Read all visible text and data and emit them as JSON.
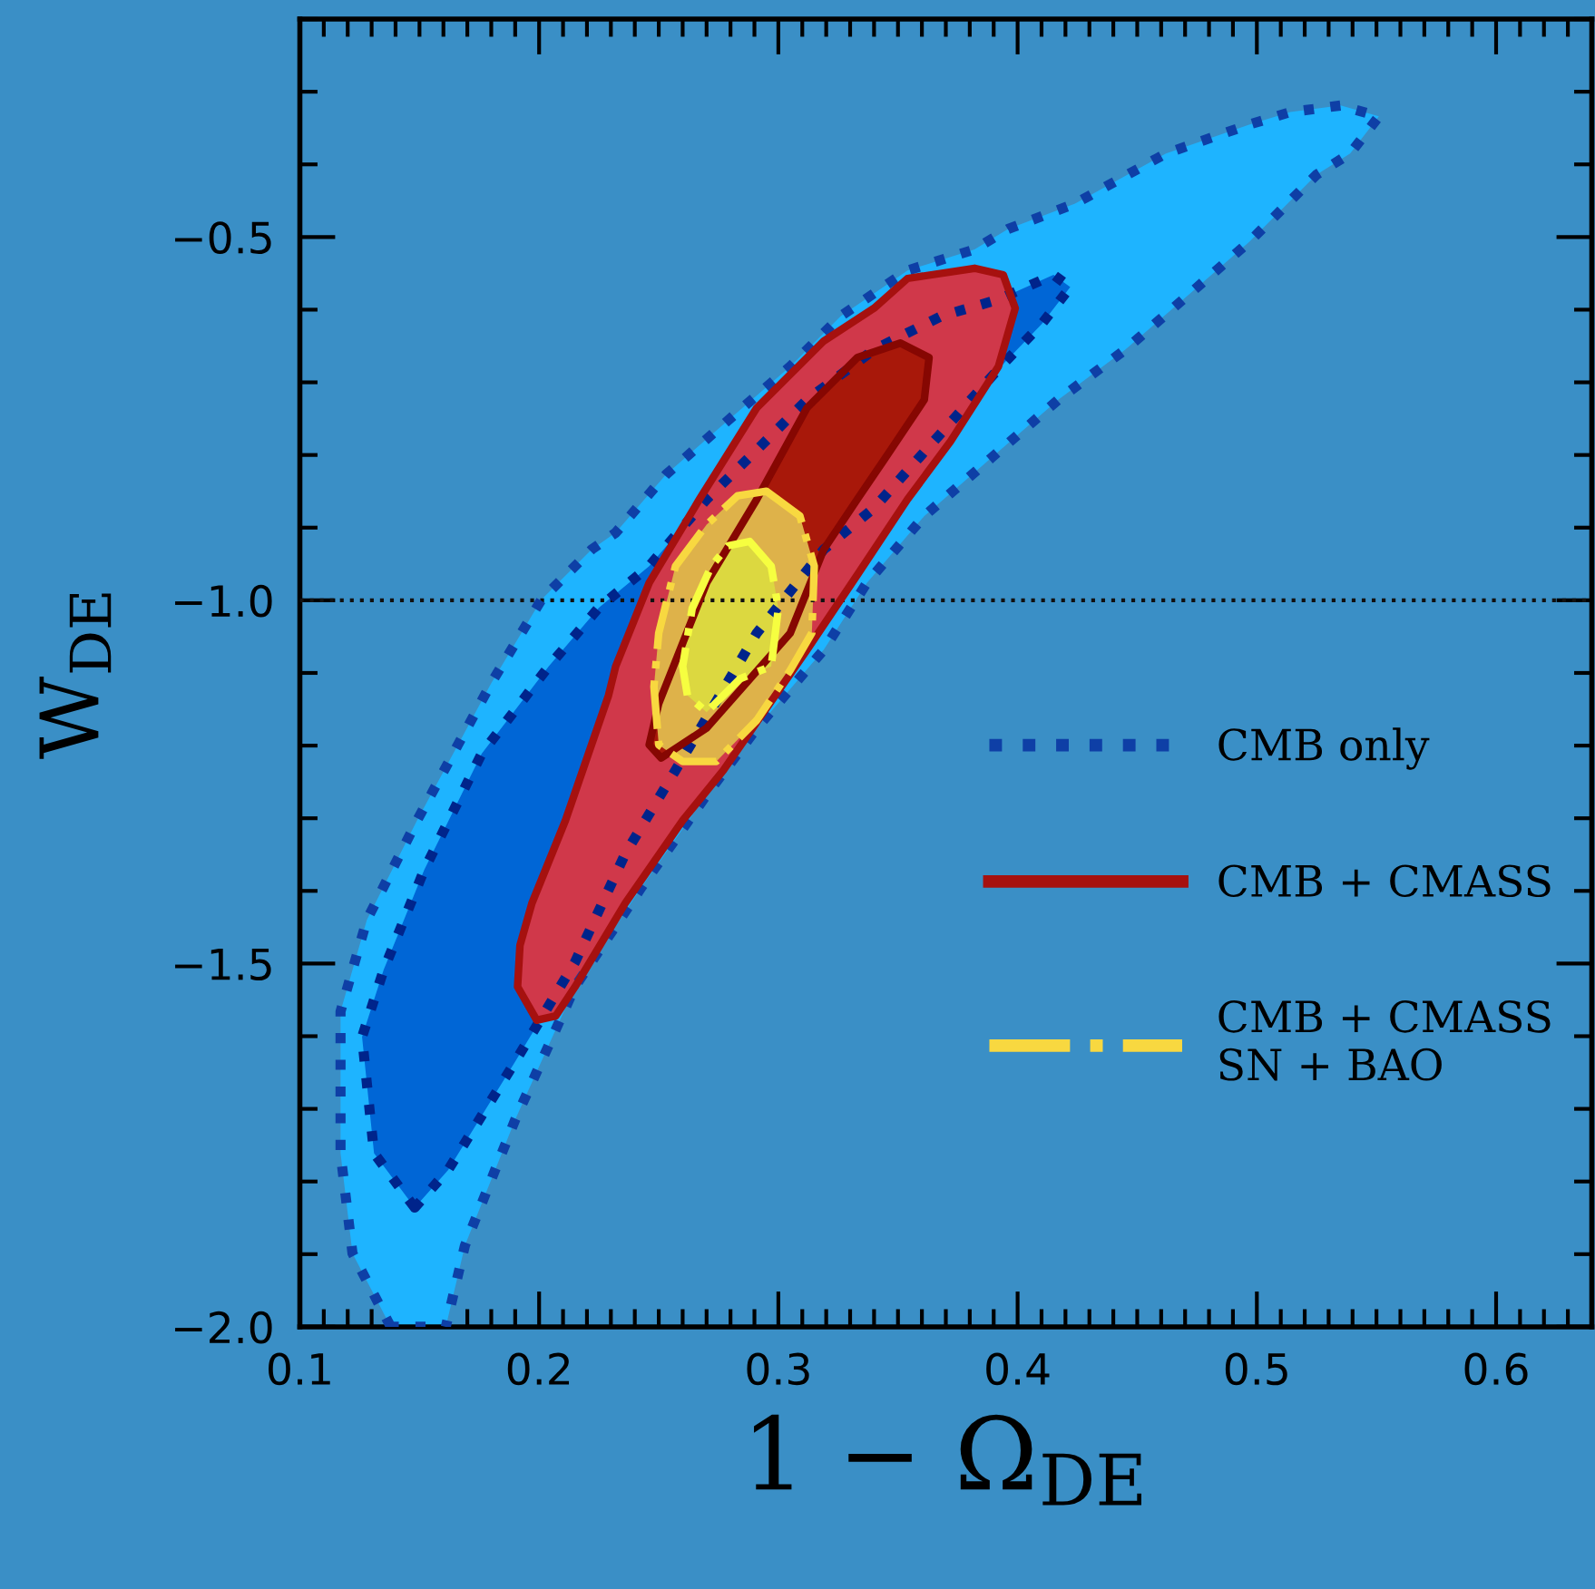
{
  "chart_data": {
    "type": "area",
    "xlabel": "1 − Ω$_{DE}$",
    "ylabel": "W$_{DE}$",
    "xlim": [
      0.1,
      0.64
    ],
    "ylim": [
      -2.0,
      -0.2
    ],
    "xticks": [
      0.1,
      0.2,
      0.3,
      0.4,
      0.5,
      0.6
    ],
    "yticks": [
      {
        "value": -2.0,
        "label": "−2.0"
      },
      {
        "value": -1.5,
        "label": "−1.5"
      },
      {
        "value": -1.0,
        "label": "−1.0"
      },
      {
        "value": -0.5,
        "label": "−0.5"
      }
    ],
    "grid": false,
    "legend": "right",
    "ref_lines": [
      {
        "axis": "y",
        "value": -1.0,
        "color": "#111111",
        "line_style": "dotted"
      }
    ],
    "series": [
      {
        "name": "CMB only",
        "color": "#1eb4ff",
        "line_style": "dotted",
        "x": [
          0.138,
          0.122,
          0.117,
          0.117,
          0.128,
          0.149,
          0.18,
          0.201,
          0.222,
          0.232,
          0.253,
          0.277,
          0.305,
          0.326,
          0.354,
          0.382,
          0.396,
          0.424,
          0.462,
          0.497,
          0.514,
          0.535,
          0.551,
          0.539,
          0.525,
          0.497,
          0.473,
          0.445,
          0.417,
          0.389,
          0.361,
          0.337,
          0.319,
          0.291,
          0.27,
          0.243,
          0.215,
          0.19,
          0.169,
          0.161
        ],
        "values": [
          -2.0,
          -1.899,
          -1.761,
          -1.566,
          -1.44,
          -1.303,
          -1.114,
          -0.999,
          -0.93,
          -0.907,
          -0.827,
          -0.758,
          -0.678,
          -0.609,
          -0.546,
          -0.517,
          -0.489,
          -0.454,
          -0.385,
          -0.345,
          -0.328,
          -0.319,
          -0.334,
          -0.385,
          -0.414,
          -0.506,
          -0.575,
          -0.655,
          -0.724,
          -0.804,
          -0.884,
          -0.976,
          -1.068,
          -1.176,
          -1.268,
          -1.394,
          -1.532,
          -1.715,
          -1.888,
          -2.0
        ]
      },
      {
        "color": "#0066d6",
        "line_style": "dotted",
        "x": [
          0.148,
          0.131,
          0.126,
          0.135,
          0.152,
          0.176,
          0.204,
          0.225,
          0.246,
          0.27,
          0.291,
          0.312,
          0.34,
          0.368,
          0.392,
          0.415,
          0.422,
          0.41,
          0.393,
          0.365,
          0.34,
          0.319,
          0.291,
          0.257,
          0.236,
          0.215,
          0.19,
          0.162
        ],
        "values": [
          -1.836,
          -1.761,
          -1.601,
          -1.509,
          -1.371,
          -1.211,
          -1.091,
          -1.01,
          -0.953,
          -0.861,
          -0.793,
          -0.724,
          -0.655,
          -0.609,
          -0.586,
          -0.552,
          -0.569,
          -0.62,
          -0.678,
          -0.781,
          -0.873,
          -0.93,
          -1.045,
          -1.234,
          -1.349,
          -1.498,
          -1.635,
          -1.784
        ]
      },
      {
        "name": "CMB + CMASS",
        "color": "#d0384a",
        "line_style": "solid",
        "x": [
          0.199,
          0.191,
          0.192,
          0.197,
          0.211,
          0.229,
          0.232,
          0.246,
          0.267,
          0.291,
          0.319,
          0.34,
          0.354,
          0.382,
          0.394,
          0.399,
          0.392,
          0.372,
          0.354,
          0.333,
          0.312,
          0.277,
          0.26,
          0.236,
          0.215,
          0.207
        ],
        "values": [
          -1.578,
          -1.532,
          -1.475,
          -1.417,
          -1.303,
          -1.131,
          -1.091,
          -0.976,
          -0.861,
          -0.735,
          -0.643,
          -0.598,
          -0.557,
          -0.543,
          -0.552,
          -0.598,
          -0.678,
          -0.781,
          -0.861,
          -0.965,
          -1.068,
          -1.234,
          -1.303,
          -1.417,
          -1.532,
          -1.572
        ]
      },
      {
        "color": "#a8180a",
        "line_style": "solid",
        "x": [
          0.246,
          0.25,
          0.27,
          0.291,
          0.312,
          0.333,
          0.351,
          0.363,
          0.361,
          0.347,
          0.333,
          0.319,
          0.305,
          0.27,
          0.251
        ],
        "values": [
          -1.199,
          -1.142,
          -0.976,
          -0.861,
          -0.735,
          -0.666,
          -0.646,
          -0.666,
          -0.724,
          -0.793,
          -0.861,
          -0.93,
          -1.045,
          -1.176,
          -1.217
        ]
      },
      {
        "name": "CMB + CMASS\nSN + BAO",
        "color": "#deb24a",
        "line_style": "dashdot",
        "x": [
          0.295,
          0.309,
          0.315,
          0.314,
          0.305,
          0.291,
          0.274,
          0.26,
          0.25,
          0.248,
          0.25,
          0.257,
          0.27,
          0.283
        ],
        "values": [
          -0.85,
          -0.884,
          -0.953,
          -1.045,
          -1.096,
          -1.165,
          -1.222,
          -1.222,
          -1.199,
          -1.119,
          -1.045,
          -0.953,
          -0.896,
          -0.856
        ]
      },
      {
        "color": "#dcd840",
        "line_style": "dashdot",
        "x": [
          0.288,
          0.297,
          0.3,
          0.297,
          0.284,
          0.27,
          0.262,
          0.26,
          0.264,
          0.272,
          0.279
        ],
        "values": [
          -0.919,
          -0.953,
          -1.011,
          -1.091,
          -1.108,
          -1.154,
          -1.131,
          -1.091,
          -1.011,
          -0.953,
          -0.925
        ]
      }
    ]
  }
}
